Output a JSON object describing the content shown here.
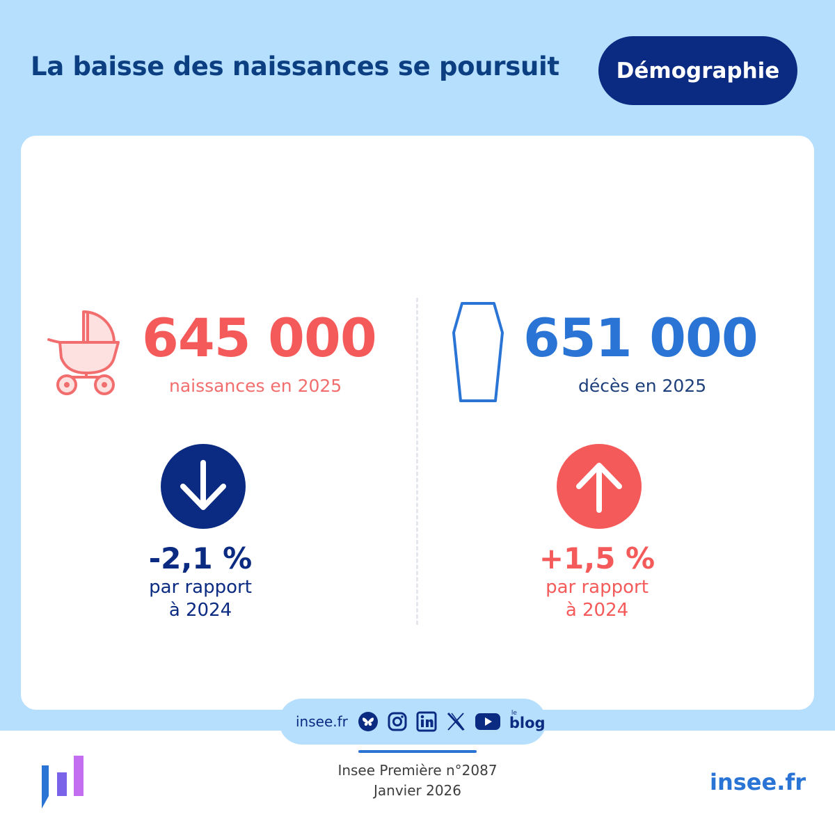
{
  "header": {
    "title": "La baisse des naissances se poursuit",
    "topic": "Démographie"
  },
  "births": {
    "icon": "stroller-icon",
    "value": "645 000",
    "caption": "naissances en 2025",
    "trend_icon": "arrow-down-icon",
    "change": "-2,1 %",
    "change_line1": "par rapport",
    "change_line2": "à 2024",
    "color": "#f55a5a"
  },
  "deaths": {
    "icon": "coffin-icon",
    "value": "651 000",
    "caption": "décès en 2025",
    "trend_icon": "arrow-up-icon",
    "change": "+1,5 %",
    "change_line1": "par rapport",
    "change_line2": "à 2024",
    "color": "#2a74d6"
  },
  "social": {
    "site": "insee.fr",
    "icons": [
      "bluesky-icon",
      "instagram-icon",
      "linkedin-icon",
      "x-icon",
      "youtube-icon",
      "blog-icon"
    ],
    "blog_prefix": "le",
    "blog_word": "blog"
  },
  "footer": {
    "publication": "Insee Première n°2087",
    "date": "Janvier 2026",
    "site": "insee.fr",
    "logo": "insee-logo"
  },
  "colors": {
    "background": "#b6dffd",
    "navy": "#0b2b82",
    "red": "#f55a5a",
    "blue": "#2a74d6"
  }
}
